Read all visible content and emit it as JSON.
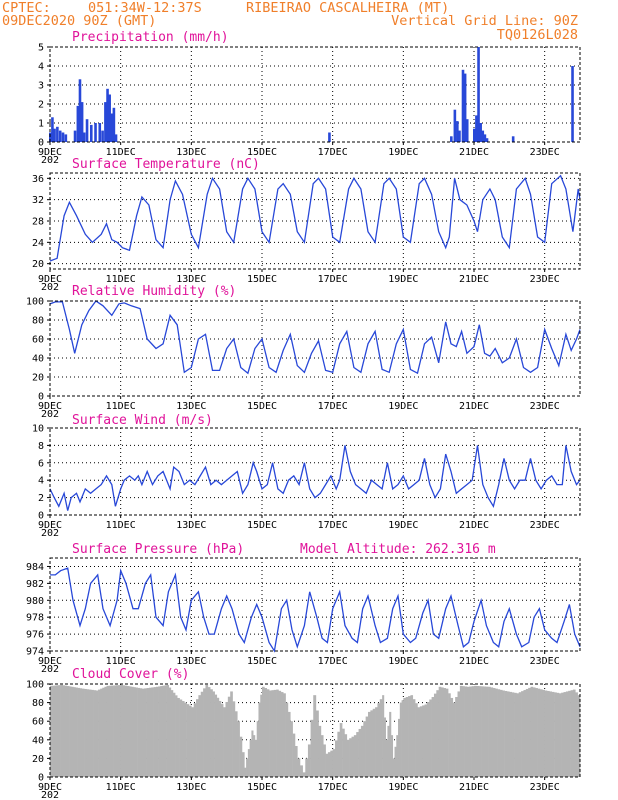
{
  "header": {
    "source": "CPTEC:",
    "coords": "051:34W-12:37S",
    "location": "RIBEIRAO CASCALHEIRA (MT)",
    "run": "09DEC2020 90Z (GMT)",
    "grid_note": "Vertical Grid Line: 90Z",
    "model": "TQ0126L028"
  },
  "colors": {
    "header": "#f07f2a",
    "titles": "#e0139a",
    "series": "#2848d8",
    "cloud": "#b4b4b4"
  },
  "time_axis": {
    "start_day": 9,
    "end_day": 24,
    "tick_labels": [
      "9DEC",
      "11DEC",
      "13DEC",
      "15DEC",
      "17DEC",
      "19DEC",
      "21DEC",
      "23DEC"
    ],
    "tick_days": [
      9,
      11,
      13,
      15,
      17,
      19,
      21,
      23
    ],
    "year_stub": "202"
  },
  "chart_data": [
    {
      "type": "bar",
      "title": "Precipitation (mm/h)",
      "ylim": [
        0,
        5
      ],
      "yticks": [
        0,
        1,
        2,
        3,
        4,
        5
      ],
      "color": "#2848d8",
      "bars": [
        [
          9.0,
          0.5
        ],
        [
          9.06,
          1.3
        ],
        [
          9.12,
          0.7
        ],
        [
          9.2,
          0.8
        ],
        [
          9.28,
          0.6
        ],
        [
          9.36,
          0.5
        ],
        [
          9.44,
          0.4
        ],
        [
          9.7,
          0.6
        ],
        [
          9.78,
          1.9
        ],
        [
          9.84,
          3.3
        ],
        [
          9.9,
          2.1
        ],
        [
          9.96,
          0.5
        ],
        [
          10.04,
          1.2
        ],
        [
          10.16,
          0.9
        ],
        [
          10.28,
          1.0
        ],
        [
          10.4,
          1.0
        ],
        [
          10.48,
          0.6
        ],
        [
          10.56,
          2.1
        ],
        [
          10.62,
          2.8
        ],
        [
          10.68,
          2.5
        ],
        [
          10.74,
          1.5
        ],
        [
          10.8,
          1.8
        ],
        [
          10.86,
          0.4
        ],
        [
          16.9,
          0.5
        ],
        [
          20.35,
          0.3
        ],
        [
          20.45,
          1.7
        ],
        [
          20.52,
          1.1
        ],
        [
          20.58,
          0.6
        ],
        [
          20.68,
          3.8
        ],
        [
          20.74,
          3.6
        ],
        [
          20.8,
          1.2
        ],
        [
          21.0,
          0.7
        ],
        [
          21.06,
          1.4
        ],
        [
          21.12,
          5.0
        ],
        [
          21.18,
          1.0
        ],
        [
          21.24,
          0.6
        ],
        [
          21.3,
          0.4
        ],
        [
          21.36,
          0.2
        ],
        [
          22.1,
          0.3
        ],
        [
          23.78,
          4.0
        ]
      ]
    },
    {
      "type": "line",
      "title": "Surface Temperature (nC)",
      "ylim": [
        19,
        37
      ],
      "yticks": [
        20,
        24,
        28,
        32,
        36
      ],
      "color": "#2848d8",
      "x": [
        9.0,
        9.2,
        9.4,
        9.55,
        9.75,
        10.0,
        10.2,
        10.45,
        10.6,
        10.75,
        10.9,
        11.05,
        11.25,
        11.45,
        11.6,
        11.8,
        12.0,
        12.2,
        12.4,
        12.55,
        12.75,
        13.0,
        13.2,
        13.45,
        13.6,
        13.8,
        14.0,
        14.2,
        14.45,
        14.6,
        14.8,
        15.0,
        15.2,
        15.45,
        15.6,
        15.8,
        16.0,
        16.2,
        16.45,
        16.6,
        16.8,
        17.0,
        17.2,
        17.45,
        17.6,
        17.8,
        18.0,
        18.2,
        18.45,
        18.6,
        18.8,
        19.0,
        19.2,
        19.45,
        19.6,
        19.8,
        20.0,
        20.2,
        20.3,
        20.45,
        20.6,
        20.8,
        21.0,
        21.1,
        21.25,
        21.45,
        21.6,
        21.8,
        22.0,
        22.2,
        22.45,
        22.6,
        22.8,
        23.0,
        23.2,
        23.45,
        23.6,
        23.8,
        23.95,
        24.0
      ],
      "values": [
        20.5,
        21,
        29,
        31.5,
        29,
        25.5,
        24,
        25.5,
        27.5,
        24.5,
        24,
        23,
        22.5,
        29,
        32.5,
        31,
        24.5,
        23,
        32,
        35.5,
        33,
        25.5,
        23,
        33,
        36,
        34,
        26,
        24,
        34,
        36,
        34,
        26,
        24,
        34,
        35,
        33,
        26,
        24,
        35,
        36,
        34,
        25,
        24,
        34,
        36,
        34,
        26,
        24,
        35,
        36,
        34,
        25,
        24,
        35,
        36,
        33,
        26,
        23,
        25,
        36,
        32,
        31,
        28,
        26,
        32,
        34,
        32,
        25,
        23,
        34,
        36,
        33,
        25,
        24,
        35,
        36.5,
        34,
        26,
        34,
        32
      ]
    },
    {
      "type": "line",
      "title": "Relative Humidity (%)",
      "ylim": [
        0,
        100
      ],
      "yticks": [
        0,
        20,
        40,
        60,
        80,
        100
      ],
      "color": "#2848d8",
      "x": [
        9.0,
        9.15,
        9.35,
        9.55,
        9.7,
        9.9,
        10.1,
        10.3,
        10.5,
        10.75,
        10.95,
        11.1,
        11.3,
        11.55,
        11.75,
        12.0,
        12.2,
        12.4,
        12.6,
        12.8,
        13.0,
        13.2,
        13.4,
        13.6,
        13.8,
        14.0,
        14.2,
        14.4,
        14.6,
        14.8,
        15.0,
        15.2,
        15.4,
        15.6,
        15.8,
        16.0,
        16.2,
        16.4,
        16.6,
        16.8,
        17.0,
        17.2,
        17.4,
        17.6,
        17.8,
        18.0,
        18.2,
        18.4,
        18.6,
        18.8,
        19.0,
        19.2,
        19.4,
        19.6,
        19.8,
        20.0,
        20.2,
        20.35,
        20.5,
        20.65,
        20.8,
        21.0,
        21.15,
        21.3,
        21.45,
        21.6,
        21.8,
        22.0,
        22.2,
        22.4,
        22.6,
        22.8,
        23.0,
        23.2,
        23.4,
        23.6,
        23.75,
        23.9,
        24.0
      ],
      "values": [
        97,
        99,
        99,
        70,
        45,
        75,
        90,
        100,
        95,
        85,
        97,
        98,
        95,
        92,
        60,
        50,
        55,
        85,
        75,
        25,
        30,
        60,
        65,
        27,
        27,
        50,
        60,
        30,
        24,
        50,
        60,
        30,
        25,
        48,
        65,
        32,
        25,
        45,
        58,
        27,
        25,
        55,
        68,
        30,
        25,
        55,
        68,
        28,
        25,
        55,
        70,
        28,
        24,
        55,
        62,
        35,
        78,
        55,
        52,
        68,
        45,
        52,
        75,
        45,
        42,
        50,
        35,
        40,
        60,
        30,
        25,
        30,
        70,
        50,
        32,
        65,
        48,
        60,
        70
      ]
    },
    {
      "type": "line",
      "title": "Surface Wind (m/s)",
      "ylim": [
        0,
        10
      ],
      "yticks": [
        0,
        2,
        4,
        6,
        8,
        10
      ],
      "color": "#2848d8",
      "x": [
        9.0,
        9.12,
        9.25,
        9.4,
        9.5,
        9.6,
        9.75,
        9.85,
        10.0,
        10.15,
        10.3,
        10.45,
        10.6,
        10.75,
        10.85,
        11.0,
        11.1,
        11.25,
        11.4,
        11.5,
        11.6,
        11.75,
        11.9,
        12.05,
        12.2,
        12.4,
        12.5,
        12.65,
        12.8,
        12.95,
        13.1,
        13.25,
        13.4,
        13.55,
        13.7,
        13.85,
        14.0,
        14.15,
        14.3,
        14.45,
        14.6,
        14.75,
        14.85,
        15.0,
        15.15,
        15.3,
        15.45,
        15.6,
        15.75,
        15.9,
        16.05,
        16.2,
        16.35,
        16.5,
        16.65,
        16.8,
        16.95,
        17.1,
        17.2,
        17.35,
        17.5,
        17.65,
        17.8,
        17.95,
        18.1,
        18.25,
        18.4,
        18.55,
        18.7,
        18.85,
        19.0,
        19.15,
        19.3,
        19.45,
        19.6,
        19.75,
        19.9,
        20.05,
        20.2,
        20.35,
        20.5,
        20.65,
        20.8,
        20.95,
        21.1,
        21.25,
        21.4,
        21.55,
        21.7,
        21.85,
        22.0,
        22.15,
        22.3,
        22.45,
        22.6,
        22.75,
        22.9,
        23.05,
        23.2,
        23.35,
        23.5,
        23.6,
        23.75,
        23.9,
        24.0
      ],
      "values": [
        3,
        2,
        1,
        2.5,
        0.5,
        2,
        2.5,
        1.5,
        3,
        2.5,
        3,
        3.5,
        4.5,
        3.5,
        1,
        3,
        4,
        4.5,
        4,
        4.5,
        3.5,
        5,
        3.5,
        4.5,
        5,
        3,
        5.5,
        5,
        3.5,
        4,
        3.5,
        4.5,
        5.5,
        3.5,
        4,
        3.5,
        4,
        4.5,
        5,
        2.5,
        3.5,
        6,
        5,
        3,
        3.5,
        6,
        3,
        2.5,
        4,
        4.5,
        3.5,
        6,
        3,
        2,
        2.5,
        3.5,
        4.5,
        3,
        4,
        8,
        5,
        3.5,
        3,
        2.5,
        4,
        3.5,
        3,
        6,
        3,
        3.5,
        4.5,
        3,
        3.5,
        4,
        6.5,
        3.5,
        2,
        3,
        7,
        5,
        2.5,
        3,
        3.5,
        4,
        8,
        3.5,
        2,
        1,
        3.5,
        6.5,
        4,
        3,
        4,
        4,
        6.5,
        4,
        3,
        4,
        4.5,
        3.5,
        3.5,
        8,
        5,
        3.5,
        4
      ]
    },
    {
      "type": "line",
      "title": "Surface Pressure (hPa)",
      "annotation": "Model Altitude: 262.316 m",
      "ylim": [
        974,
        985
      ],
      "yticks": [
        974,
        976,
        978,
        980,
        982,
        984
      ],
      "color": "#2848d8",
      "x": [
        9.0,
        9.15,
        9.3,
        9.5,
        9.65,
        9.85,
        10.0,
        10.15,
        10.35,
        10.5,
        10.7,
        10.9,
        11.0,
        11.15,
        11.35,
        11.5,
        11.7,
        11.85,
        12.0,
        12.2,
        12.35,
        12.55,
        12.7,
        12.85,
        13.0,
        13.2,
        13.35,
        13.5,
        13.65,
        13.85,
        14.0,
        14.15,
        14.35,
        14.5,
        14.7,
        14.85,
        15.0,
        15.2,
        15.35,
        15.55,
        15.7,
        15.85,
        16.0,
        16.2,
        16.35,
        16.55,
        16.7,
        16.85,
        17.0,
        17.2,
        17.35,
        17.55,
        17.7,
        17.85,
        18.0,
        18.2,
        18.35,
        18.55,
        18.7,
        18.85,
        19.0,
        19.2,
        19.35,
        19.55,
        19.7,
        19.85,
        20.0,
        20.2,
        20.35,
        20.55,
        20.7,
        20.85,
        21.0,
        21.2,
        21.35,
        21.55,
        21.7,
        21.85,
        22.0,
        22.2,
        22.35,
        22.55,
        22.7,
        22.85,
        23.0,
        23.2,
        23.35,
        23.55,
        23.7,
        23.85,
        24.0
      ],
      "values": [
        983,
        983,
        983.5,
        983.8,
        980,
        977,
        979,
        982,
        983,
        979,
        977,
        980,
        983.5,
        982,
        979,
        979,
        982,
        983,
        978,
        977,
        981,
        983,
        978,
        976.5,
        980,
        981,
        978,
        976,
        976,
        979,
        980.5,
        979,
        976,
        975,
        978,
        979.5,
        978,
        975,
        974,
        979,
        980,
        976.5,
        974.5,
        977,
        981,
        978,
        975.5,
        975,
        979,
        981,
        977,
        975.5,
        975,
        979,
        980.5,
        977,
        975,
        975.5,
        979,
        980.5,
        976,
        975,
        975.5,
        978.5,
        980,
        976,
        975.5,
        979,
        980.5,
        977,
        974.5,
        975,
        977.5,
        980,
        977,
        975,
        974.5,
        977.5,
        979,
        976,
        974.5,
        975,
        978,
        979,
        976.5,
        975.5,
        975,
        977.5,
        979.5,
        976,
        974.5
      ]
    },
    {
      "type": "bar",
      "title": "Cloud Cover (%)",
      "ylim": [
        0,
        100
      ],
      "yticks": [
        0,
        20,
        40,
        60,
        80,
        100
      ],
      "color": "#b4b4b4",
      "x": [
        9.0,
        9.3,
        9.6,
        9.9,
        10.3,
        10.6,
        11.0,
        11.3,
        11.6,
        12.0,
        12.3,
        12.6,
        13.0,
        13.2,
        13.4,
        13.6,
        13.9,
        14.1,
        14.3,
        14.5,
        14.6,
        14.7,
        14.8,
        14.9,
        15.0,
        15.2,
        15.4,
        15.6,
        15.8,
        16.0,
        16.15,
        16.3,
        16.45,
        16.6,
        16.8,
        17.0,
        17.2,
        17.4,
        17.6,
        17.8,
        18.0,
        18.2,
        18.4,
        18.5,
        18.6,
        18.7,
        18.8,
        18.9,
        19.0,
        19.2,
        19.4,
        19.6,
        19.8,
        20.0,
        20.2,
        20.4,
        20.6,
        20.8,
        21.0,
        21.4,
        21.8,
        22.2,
        22.6,
        23.0,
        23.4,
        23.8,
        24.0
      ],
      "values": [
        98,
        99,
        97,
        95,
        93,
        98,
        99,
        97,
        95,
        97,
        99,
        85,
        75,
        88,
        99,
        92,
        75,
        92,
        60,
        10,
        30,
        50,
        40,
        80,
        97,
        93,
        94,
        90,
        60,
        20,
        5,
        35,
        88,
        55,
        25,
        30,
        58,
        40,
        45,
        55,
        70,
        75,
        88,
        40,
        70,
        20,
        45,
        80,
        85,
        88,
        75,
        78,
        86,
        97,
        95,
        80,
        98,
        97,
        98,
        97,
        93,
        90,
        97,
        93,
        90,
        94,
        85
      ]
    }
  ]
}
